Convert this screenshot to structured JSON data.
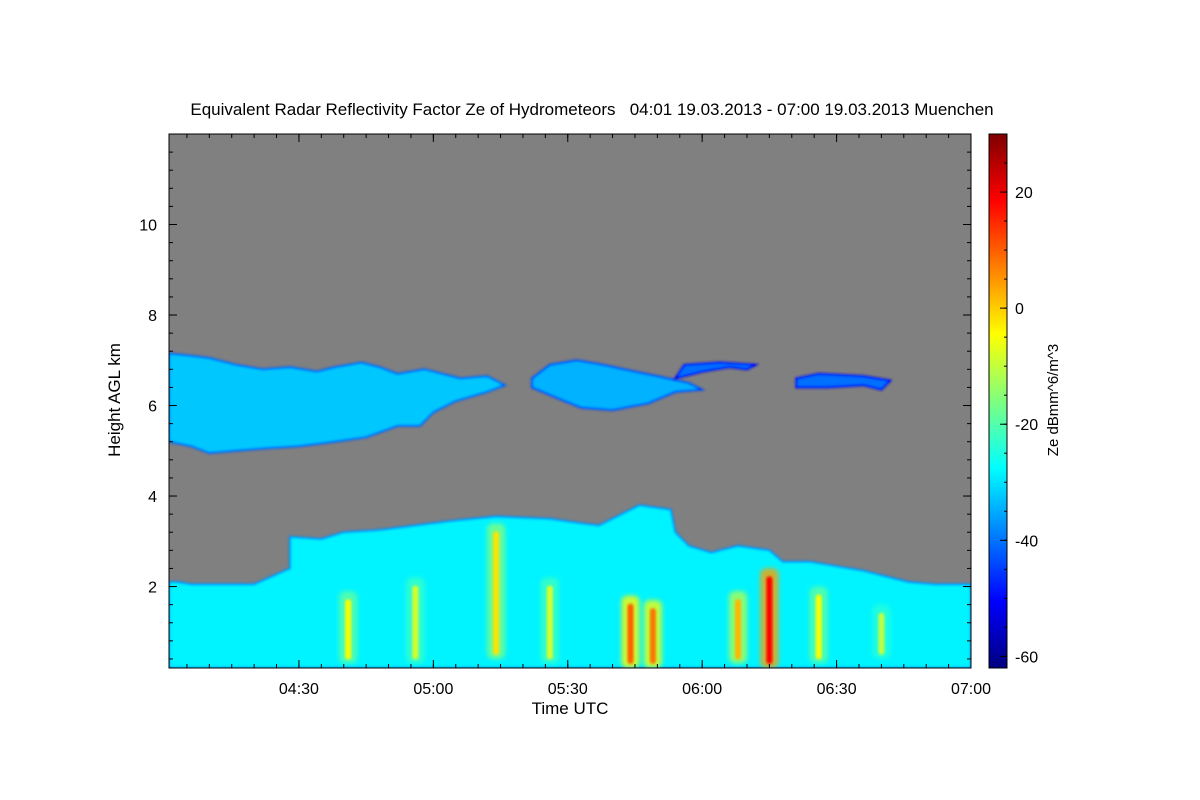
{
  "chart_data": {
    "type": "heatmap",
    "title": "Equivalent Radar Reflectivity Factor Ze of Hydrometeors   04:01 19.03.2013 - 07:00 19.03.2013 Muenchen",
    "xlabel": "Time UTC",
    "ylabel": "Height AGL km",
    "x_ticks": [
      "04:30",
      "05:00",
      "05:30",
      "06:00",
      "06:30",
      "07:00"
    ],
    "x_tick_minutes": [
      270,
      300,
      330,
      360,
      390,
      420
    ],
    "xlim_minutes": [
      241,
      420
    ],
    "y_ticks": [
      2,
      4,
      6,
      8,
      10
    ],
    "ylim": [
      0.2,
      12.0
    ],
    "background_color": "#808080",
    "colorbar": {
      "label": "Ze dBmm^6/m^3",
      "ticks": [
        20,
        0,
        -20,
        -40,
        -60
      ],
      "range": [
        -62,
        30
      ],
      "colors": [
        "#00007f",
        "#0000ff",
        "#007fff",
        "#00ffff",
        "#7fff7f",
        "#ffff00",
        "#ff7f00",
        "#ff0000",
        "#7f0000"
      ]
    },
    "echo_regions": [
      {
        "name": "upper",
        "points": [
          [
            241,
            5.2
          ],
          [
            246,
            5.1
          ],
          [
            250,
            4.95
          ],
          [
            256,
            5.0
          ],
          [
            262,
            5.05
          ],
          [
            270,
            5.1
          ],
          [
            278,
            5.2
          ],
          [
            285,
            5.3
          ],
          [
            292,
            5.55
          ],
          [
            297,
            5.55
          ],
          [
            300,
            5.85
          ],
          [
            305,
            6.1
          ],
          [
            312,
            6.3
          ],
          [
            316,
            6.45
          ],
          [
            312,
            6.65
          ],
          [
            306,
            6.6
          ],
          [
            298,
            6.8
          ],
          [
            292,
            6.7
          ],
          [
            288,
            6.85
          ],
          [
            284,
            6.95
          ],
          [
            278,
            6.85
          ],
          [
            274,
            6.75
          ],
          [
            268,
            6.85
          ],
          [
            262,
            6.8
          ],
          [
            256,
            6.9
          ],
          [
            250,
            7.05
          ],
          [
            246,
            7.1
          ],
          [
            241,
            7.15
          ]
        ],
        "dbz": -32
      },
      {
        "name": "middle",
        "points": [
          [
            322,
            6.4
          ],
          [
            328,
            6.15
          ],
          [
            333,
            5.95
          ],
          [
            340,
            5.9
          ],
          [
            348,
            6.05
          ],
          [
            354,
            6.3
          ],
          [
            360,
            6.35
          ],
          [
            357,
            6.5
          ],
          [
            350,
            6.65
          ],
          [
            345,
            6.75
          ],
          [
            338,
            6.9
          ],
          [
            332,
            7.0
          ],
          [
            326,
            6.9
          ],
          [
            322,
            6.6
          ]
        ],
        "dbz": -34
      },
      {
        "name": "small1",
        "points": [
          [
            354,
            6.6
          ],
          [
            360,
            6.75
          ],
          [
            366,
            6.85
          ],
          [
            370,
            6.8
          ],
          [
            372,
            6.9
          ],
          [
            364,
            6.95
          ],
          [
            356,
            6.9
          ]
        ],
        "dbz": -40
      },
      {
        "name": "small2",
        "points": [
          [
            381,
            6.4
          ],
          [
            388,
            6.4
          ],
          [
            396,
            6.45
          ],
          [
            400,
            6.35
          ],
          [
            402,
            6.55
          ],
          [
            396,
            6.65
          ],
          [
            386,
            6.7
          ],
          [
            381,
            6.6
          ]
        ],
        "dbz": -40
      },
      {
        "name": "lower",
        "points": [
          [
            241,
            0.2
          ],
          [
            420,
            0.2
          ],
          [
            420,
            2.05
          ],
          [
            412,
            2.05
          ],
          [
            406,
            2.1
          ],
          [
            402,
            2.2
          ],
          [
            396,
            2.35
          ],
          [
            390,
            2.45
          ],
          [
            384,
            2.55
          ],
          [
            378,
            2.55
          ],
          [
            375,
            2.8
          ],
          [
            368,
            2.9
          ],
          [
            362,
            2.75
          ],
          [
            357,
            2.9
          ],
          [
            354,
            3.2
          ],
          [
            353,
            3.7
          ],
          [
            346,
            3.8
          ],
          [
            341,
            3.55
          ],
          [
            337,
            3.35
          ],
          [
            333,
            3.4
          ],
          [
            326,
            3.5
          ],
          [
            314,
            3.55
          ],
          [
            304,
            3.45
          ],
          [
            296,
            3.35
          ],
          [
            288,
            3.25
          ],
          [
            280,
            3.2
          ],
          [
            275,
            3.05
          ],
          [
            268,
            3.1
          ],
          [
            268,
            2.4
          ],
          [
            260,
            2.05
          ],
          [
            246,
            2.05
          ],
          [
            243,
            2.1
          ],
          [
            241,
            2.1
          ]
        ],
        "dbz": -28
      }
    ],
    "intense_cores": [
      {
        "x": 281,
        "h0": 0.3,
        "h1": 1.9,
        "dbz": -5
      },
      {
        "x": 296,
        "h0": 0.3,
        "h1": 2.2,
        "dbz": -8
      },
      {
        "x": 314,
        "h0": 0.4,
        "h1": 3.4,
        "dbz": -2
      },
      {
        "x": 326,
        "h0": 0.3,
        "h1": 2.2,
        "dbz": -8
      },
      {
        "x": 344,
        "h0": 0.2,
        "h1": 1.8,
        "dbz": 10
      },
      {
        "x": 349,
        "h0": 0.2,
        "h1": 1.7,
        "dbz": 8
      },
      {
        "x": 368,
        "h0": 0.3,
        "h1": 1.9,
        "dbz": 2
      },
      {
        "x": 375,
        "h0": 0.2,
        "h1": 2.4,
        "dbz": 18
      },
      {
        "x": 386,
        "h0": 0.3,
        "h1": 2.0,
        "dbz": -5
      },
      {
        "x": 400,
        "h0": 0.4,
        "h1": 1.6,
        "dbz": -10
      }
    ]
  }
}
